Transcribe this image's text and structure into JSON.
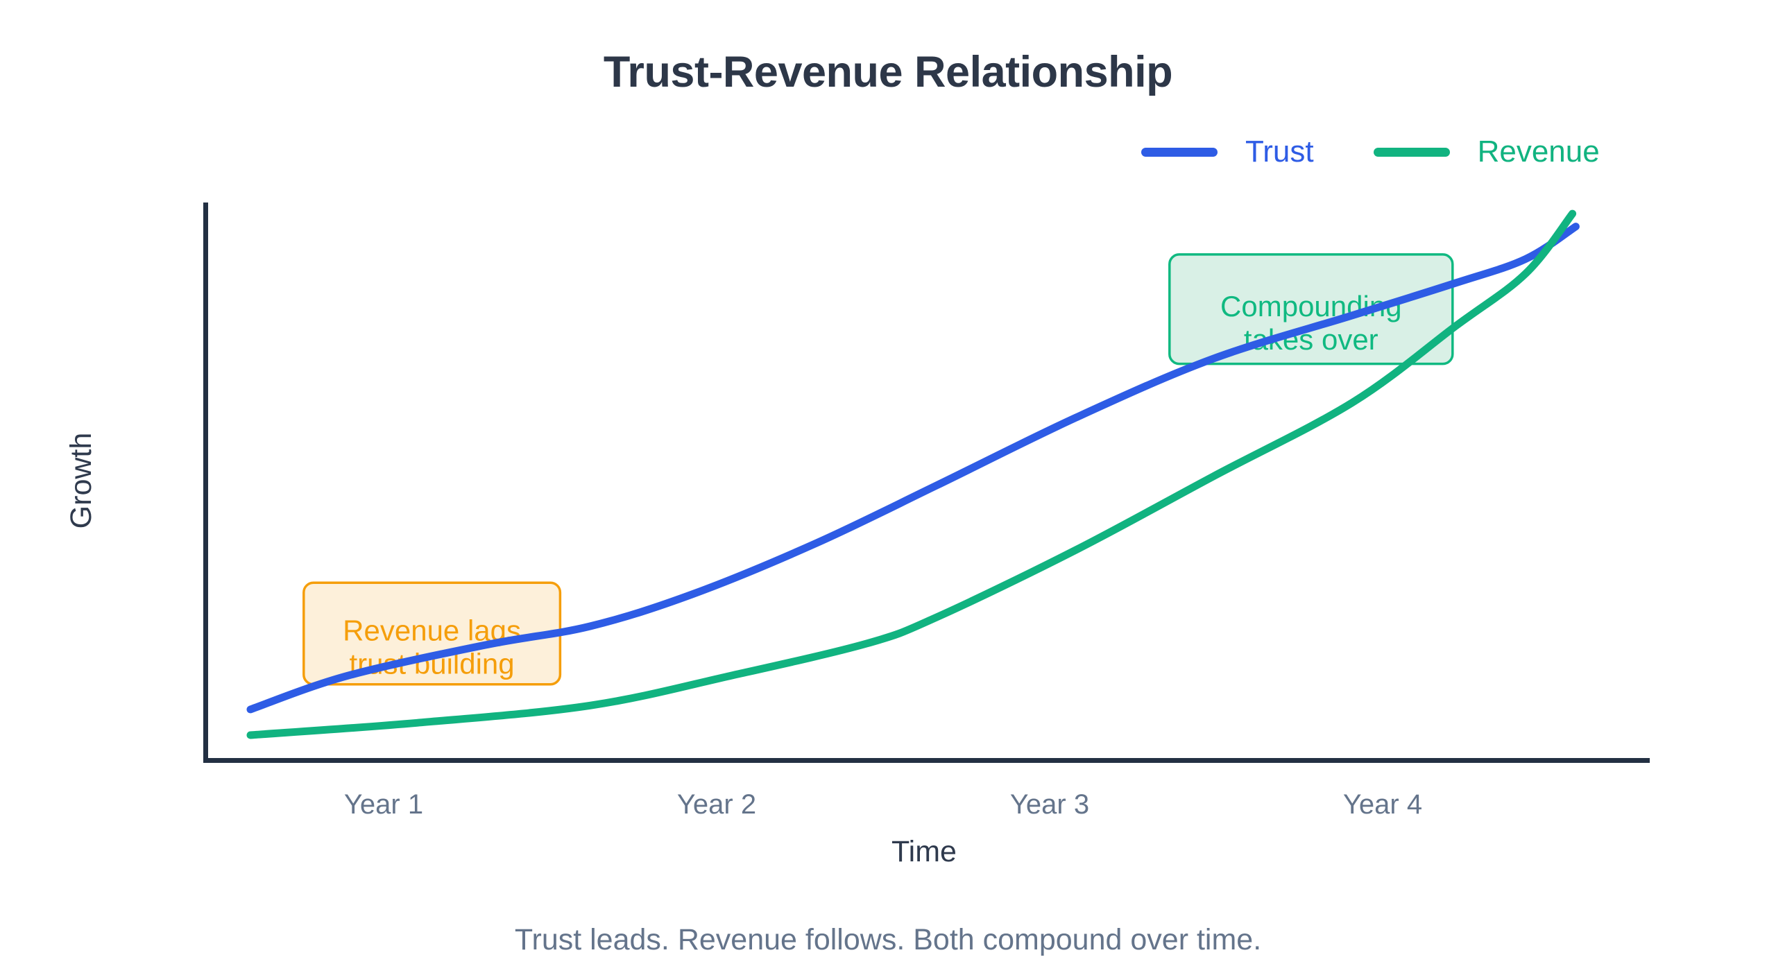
{
  "title": "Trust-Revenue Relationship",
  "legend": [
    {
      "label": "Trust",
      "color": "#2e5ce5"
    },
    {
      "label": "Revenue",
      "color": "#11b380"
    }
  ],
  "caption": "Trust leads. Revenue follows. Both compound over time.",
  "chart_data": {
    "type": "line",
    "title": "Trust-Revenue Relationship",
    "xlabel": "Time",
    "ylabel": "Growth",
    "grid": false,
    "legend_position": "top-right",
    "x_range_years": [
      0,
      4.8
    ],
    "y_range_growth": [
      0,
      100
    ],
    "x_ticks": [
      {
        "x": 1,
        "label": "Year 1"
      },
      {
        "x": 2,
        "label": "Year 2"
      },
      {
        "x": 3,
        "label": "Year 3"
      },
      {
        "x": 4,
        "label": "Year 4"
      }
    ],
    "series": [
      {
        "name": "Trust",
        "color": "#2e5ce5",
        "points": [
          [
            0.6,
            9.2
          ],
          [
            0.89,
            15.2
          ],
          [
            1.31,
            20.8
          ],
          [
            1.62,
            24.1
          ],
          [
            1.93,
            29.9
          ],
          [
            2.3,
            39.0
          ],
          [
            2.66,
            49.3
          ],
          [
            3.08,
            61.5
          ],
          [
            3.49,
            72.0
          ],
          [
            3.91,
            79.8
          ],
          [
            4.22,
            85.6
          ],
          [
            4.43,
            89.9
          ],
          [
            4.58,
            95.7
          ]
        ]
      },
      {
        "name": "Revenue",
        "color": "#11b380",
        "points": [
          [
            0.6,
            4.6
          ],
          [
            1.1,
            6.8
          ],
          [
            1.62,
            9.9
          ],
          [
            2.04,
            15.2
          ],
          [
            2.45,
            21.0
          ],
          [
            2.66,
            25.7
          ],
          [
            3.08,
            37.8
          ],
          [
            3.49,
            50.9
          ],
          [
            3.91,
            64.2
          ],
          [
            4.22,
            77.9
          ],
          [
            4.43,
            87.3
          ],
          [
            4.57,
            98.0
          ]
        ]
      }
    ],
    "annotations": [
      {
        "text_lines": [
          "Revenue lags",
          "trust building"
        ],
        "color": "#f59e0b",
        "fill": "#fdf0da",
        "x_range": [
          0.76,
          1.53
        ],
        "y_range": [
          13.7,
          31.9
        ]
      },
      {
        "text_lines": [
          "Compounding",
          "takes over"
        ],
        "color": "#10b981",
        "fill": "#d9f0e6",
        "x_range": [
          3.36,
          4.21
        ],
        "y_range": [
          71.1,
          90.7
        ]
      }
    ]
  }
}
